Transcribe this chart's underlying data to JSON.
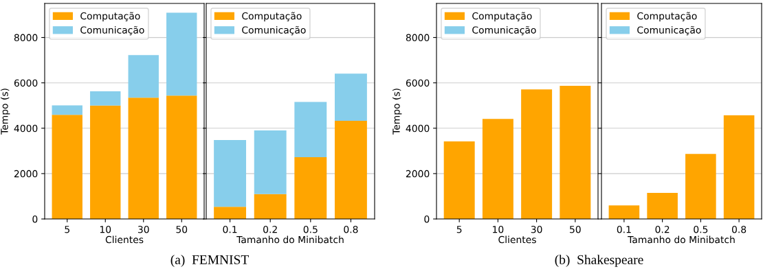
{
  "chart_data": [
    {
      "type": "bar",
      "stacked": true,
      "categories": [
        "5",
        "10",
        "30",
        "50"
      ],
      "xlabel": "Clientes",
      "ylabel": "Tempo (s)",
      "ylim": [
        0,
        9500
      ],
      "yticks": [
        0,
        2000,
        4000,
        6000,
        8000
      ],
      "grid": "y",
      "legend": "top left",
      "annotations": [
        "(a)  FEMNIST"
      ],
      "series": [
        {
          "name": "Computação",
          "color": "#ffa500",
          "values": [
            4590,
            5000,
            5350,
            5440
          ]
        },
        {
          "name": "Comunicação",
          "color": "#87ceeb",
          "values": [
            420,
            630,
            1870,
            3650
          ]
        }
      ]
    },
    {
      "type": "bar",
      "stacked": true,
      "categories": [
        "0.1",
        "0.2",
        "0.5",
        "0.8"
      ],
      "xlabel": "Tamanho do Minibatch",
      "ylim": [
        0,
        9500
      ],
      "yticks": [
        0,
        2000,
        4000,
        6000,
        8000
      ],
      "tick_labels": "x",
      "grid": "y",
      "legend": "top left",
      "series": [
        {
          "name": "Computação",
          "color": "#ffa500",
          "values": [
            540,
            1100,
            2720,
            4330
          ]
        },
        {
          "name": "Comunicação",
          "color": "#87ceeb",
          "values": [
            2940,
            2800,
            2440,
            2080
          ]
        }
      ]
    },
    {
      "type": "bar",
      "stacked": true,
      "categories": [
        "5",
        "10",
        "30",
        "50"
      ],
      "xlabel": "Clientes",
      "ylabel": "Tempo (s)",
      "ylim": [
        0,
        9500
      ],
      "yticks": [
        0,
        2000,
        4000,
        6000,
        8000
      ],
      "grid": "y",
      "legend": "top left",
      "annotations": [
        "(b)  Shakespeare"
      ],
      "series": [
        {
          "name": "Computação",
          "color": "#ffa500",
          "values": [
            3420,
            4410,
            5710,
            5870
          ]
        },
        {
          "name": "Comunicação",
          "color": "#87ceeb",
          "values": [
            null,
            null,
            null,
            null
          ]
        }
      ]
    },
    {
      "type": "bar",
      "stacked": true,
      "categories": [
        "0.1",
        "0.2",
        "0.5",
        "0.8"
      ],
      "xlabel": "Tamanho do Minibatch",
      "ylim": [
        0,
        9500
      ],
      "yticks": [
        0,
        2000,
        4000,
        6000,
        8000
      ],
      "tick_labels": "x",
      "grid": "y",
      "legend": "top left",
      "series": [
        {
          "name": "Computação",
          "color": "#ffa500",
          "values": [
            600,
            1150,
            2870,
            4570
          ]
        },
        {
          "name": "Comunicação",
          "color": "#87ceeb",
          "values": [
            null,
            null,
            null,
            null
          ]
        }
      ]
    }
  ]
}
